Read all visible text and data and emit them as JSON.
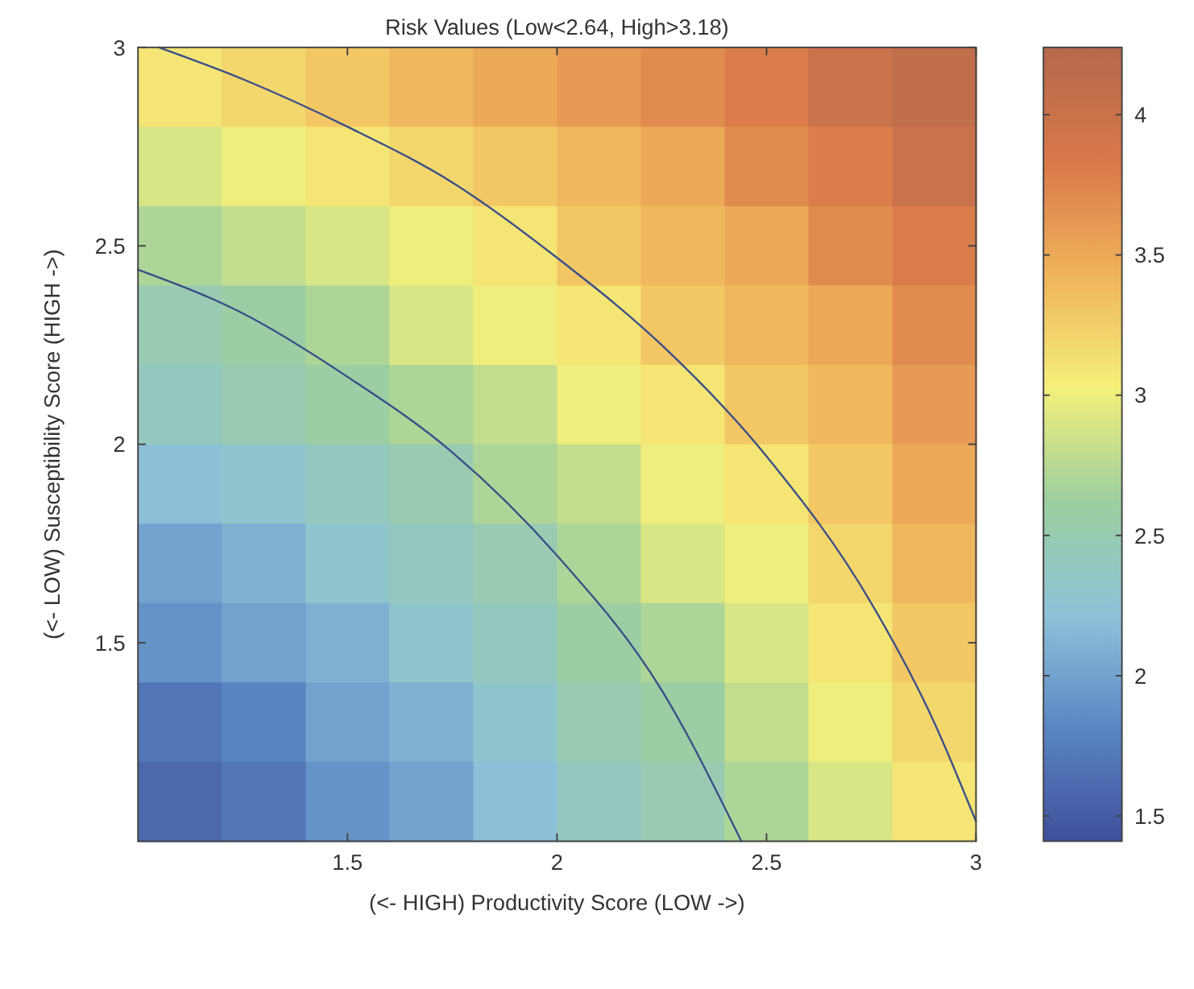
{
  "chart_data": {
    "type": "heatmap",
    "title": "Risk Values (Low<2.64, High>3.18)",
    "xlabel": "(<- HIGH) Productivity Score (LOW ->)",
    "ylabel": "(<- LOW) Susceptibility Score (HIGH ->)",
    "x": [
      1.1,
      1.3,
      1.5,
      1.7,
      1.9,
      2.1,
      2.3,
      2.5,
      2.7,
      2.9
    ],
    "y": [
      2.9,
      2.7,
      2.5,
      2.3,
      2.1,
      1.9,
      1.7,
      1.5,
      1.3,
      1.1
    ],
    "xlim": [
      1,
      3
    ],
    "xticks": [
      1.5,
      2,
      2.5,
      3
    ],
    "ylim": [
      1,
      3
    ],
    "yticks": [
      1.5,
      2,
      2.5,
      3
    ],
    "clim": [
      1.41,
      4.24
    ],
    "cticks": [
      1.5,
      2,
      2.5,
      3,
      3.5,
      4
    ],
    "cells": [
      [
        3.1,
        3.2,
        3.3,
        3.4,
        3.5,
        3.6,
        3.7,
        3.8,
        4.0,
        4.1
      ],
      [
        2.9,
        3.0,
        3.1,
        3.2,
        3.3,
        3.4,
        3.5,
        3.7,
        3.8,
        4.0
      ],
      [
        2.7,
        2.8,
        2.9,
        3.0,
        3.1,
        3.3,
        3.4,
        3.5,
        3.7,
        3.8
      ],
      [
        2.5,
        2.6,
        2.7,
        2.9,
        3.0,
        3.1,
        3.3,
        3.4,
        3.5,
        3.7
      ],
      [
        2.4,
        2.5,
        2.6,
        2.7,
        2.8,
        3.0,
        3.1,
        3.3,
        3.4,
        3.6
      ],
      [
        2.2,
        2.3,
        2.4,
        2.5,
        2.7,
        2.8,
        3.0,
        3.1,
        3.3,
        3.5
      ],
      [
        2.0,
        2.1,
        2.3,
        2.4,
        2.5,
        2.7,
        2.9,
        3.0,
        3.2,
        3.4
      ],
      [
        1.9,
        2.0,
        2.1,
        2.3,
        2.4,
        2.6,
        2.7,
        2.9,
        3.1,
        3.3
      ],
      [
        1.7,
        1.8,
        2.0,
        2.1,
        2.3,
        2.5,
        2.6,
        2.8,
        3.0,
        3.2
      ],
      [
        1.6,
        1.7,
        1.9,
        2.0,
        2.2,
        2.4,
        2.5,
        2.7,
        2.9,
        3.1
      ]
    ],
    "series": [
      {
        "type": "line",
        "color": "#3a4f8a",
        "x": [
          1,
          1.25,
          1.5,
          1.75,
          2,
          2.25,
          2.44
        ],
        "values": [
          2.44,
          2.33,
          2.17,
          1.98,
          1.72,
          1.38,
          1.0
        ]
      },
      {
        "type": "line",
        "color": "#3a4f8a",
        "x": [
          1.05,
          1.25,
          1.5,
          1.75,
          2,
          2.25,
          2.5,
          2.75,
          2.9,
          3
        ],
        "values": [
          3.0,
          2.92,
          2.8,
          2.66,
          2.47,
          2.25,
          1.97,
          1.6,
          1.3,
          1.05
        ]
      }
    ],
    "grid": false
  }
}
